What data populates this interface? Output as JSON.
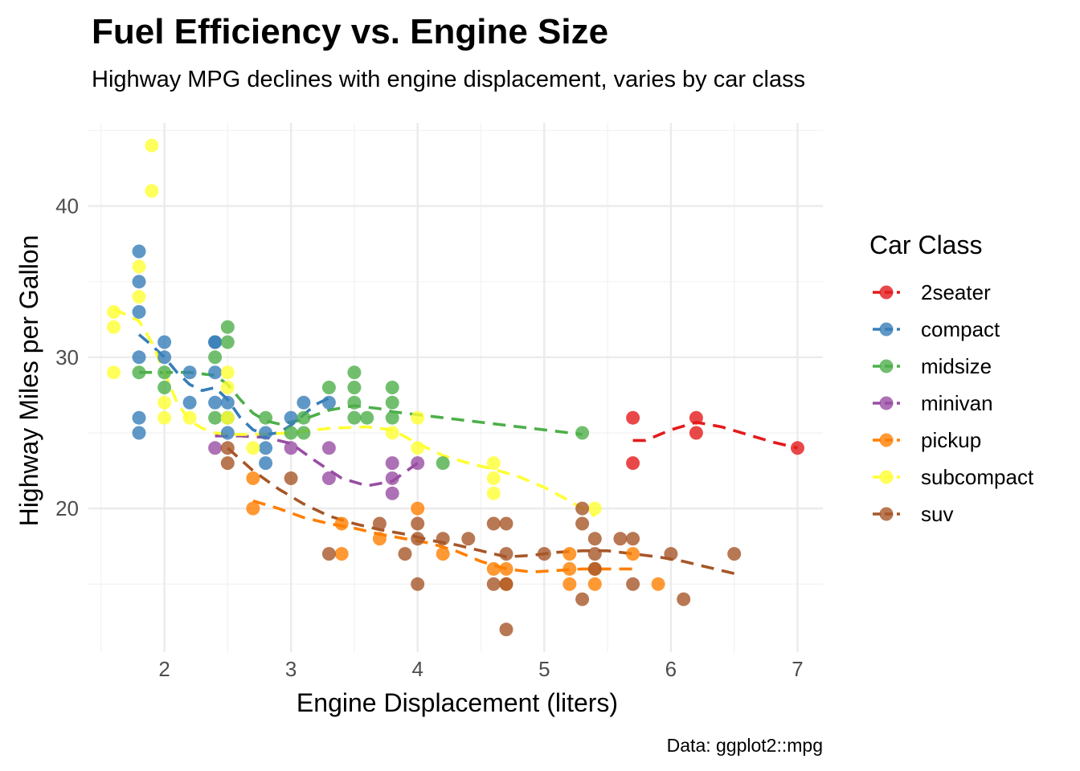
{
  "chart_data": {
    "type": "scatter",
    "title": "Fuel Efficiency vs. Engine Size",
    "subtitle": "Highway MPG declines with engine displacement, varies by car class",
    "xlabel": "Engine Displacement (liters)",
    "ylabel": "Highway Miles per Gallon",
    "caption": "Data: ggplot2::mpg",
    "legend_title": "Car Class",
    "legend_position": "right",
    "grid": true,
    "xlim": [
      1.4,
      7.2
    ],
    "ylim": [
      10.5,
      45.5
    ],
    "x_ticks": [
      2,
      3,
      4,
      5,
      6,
      7
    ],
    "y_ticks": [
      20,
      30,
      40
    ],
    "x_tick_labels": [
      "2",
      "3",
      "4",
      "5",
      "6",
      "7"
    ],
    "y_tick_labels": [
      "20",
      "30",
      "40"
    ],
    "series": [
      {
        "name": "2seater",
        "color": "#E41A1C",
        "points": [
          [
            5.7,
            26
          ],
          [
            5.7,
            23
          ],
          [
            6.2,
            26
          ],
          [
            6.2,
            25
          ],
          [
            7.0,
            24
          ]
        ],
        "trend": [
          [
            5.7,
            24.5
          ],
          [
            5.8,
            24.5
          ],
          [
            6.0,
            25.2
          ],
          [
            6.2,
            25.7
          ],
          [
            6.4,
            25.4
          ],
          [
            6.6,
            24.9
          ],
          [
            6.8,
            24.4
          ],
          [
            7.0,
            24
          ]
        ]
      },
      {
        "name": "compact",
        "color": "#377EB8",
        "points": [
          [
            1.8,
            37
          ],
          [
            1.8,
            35
          ],
          [
            1.8,
            33
          ],
          [
            1.8,
            30
          ],
          [
            1.8,
            26
          ],
          [
            1.8,
            25
          ],
          [
            2.0,
            31
          ],
          [
            2.0,
            30
          ],
          [
            2.2,
            29
          ],
          [
            2.2,
            27
          ],
          [
            2.4,
            31
          ],
          [
            2.4,
            31
          ],
          [
            2.4,
            29
          ],
          [
            2.4,
            27
          ],
          [
            2.5,
            27
          ],
          [
            2.5,
            25
          ],
          [
            2.8,
            25
          ],
          [
            2.8,
            24
          ],
          [
            2.8,
            23
          ],
          [
            3.0,
            26
          ],
          [
            3.1,
            27
          ],
          [
            3.3,
            27
          ]
        ],
        "trend": [
          [
            1.8,
            31.5
          ],
          [
            1.9,
            30.8
          ],
          [
            2.0,
            30.0
          ],
          [
            2.1,
            29.0
          ],
          [
            2.2,
            28.2
          ],
          [
            2.3,
            27.8
          ],
          [
            2.4,
            28.0
          ],
          [
            2.5,
            27.2
          ],
          [
            2.6,
            26.0
          ],
          [
            2.7,
            25.2
          ],
          [
            2.8,
            24.9
          ],
          [
            2.9,
            25.0
          ],
          [
            3.0,
            25.5
          ],
          [
            3.1,
            26.2
          ],
          [
            3.2,
            26.9
          ],
          [
            3.3,
            27.3
          ]
        ]
      },
      {
        "name": "midsize",
        "color": "#4DAF4A",
        "points": [
          [
            1.8,
            29
          ],
          [
            2.0,
            29
          ],
          [
            2.0,
            28
          ],
          [
            2.4,
            30
          ],
          [
            2.4,
            26
          ],
          [
            2.5,
            32
          ],
          [
            2.5,
            31
          ],
          [
            2.5,
            26
          ],
          [
            2.8,
            26
          ],
          [
            3.0,
            25
          ],
          [
            3.1,
            26
          ],
          [
            3.1,
            25
          ],
          [
            3.3,
            28
          ],
          [
            3.5,
            29
          ],
          [
            3.5,
            28
          ],
          [
            3.5,
            27
          ],
          [
            3.5,
            26
          ],
          [
            3.6,
            26
          ],
          [
            3.8,
            28
          ],
          [
            3.8,
            27
          ],
          [
            3.8,
            26
          ],
          [
            4.2,
            23
          ],
          [
            5.3,
            25
          ]
        ],
        "trend": [
          [
            1.8,
            29.0
          ],
          [
            2.0,
            29.0
          ],
          [
            2.2,
            29.0
          ],
          [
            2.4,
            28.8
          ],
          [
            2.5,
            28.2
          ],
          [
            2.6,
            27.2
          ],
          [
            2.7,
            26.3
          ],
          [
            2.8,
            25.8
          ],
          [
            2.9,
            25.6
          ],
          [
            3.0,
            25.7
          ],
          [
            3.1,
            25.9
          ],
          [
            3.3,
            26.5
          ],
          [
            3.5,
            26.8
          ],
          [
            3.7,
            26.6
          ],
          [
            3.8,
            26.4
          ],
          [
            4.0,
            26.2
          ],
          [
            4.3,
            25.9
          ],
          [
            4.6,
            25.6
          ],
          [
            5.0,
            25.2
          ],
          [
            5.3,
            24.9
          ]
        ]
      },
      {
        "name": "minivan",
        "color": "#984EA3",
        "points": [
          [
            2.4,
            24
          ],
          [
            3.0,
            24
          ],
          [
            3.3,
            24
          ],
          [
            3.3,
            22
          ],
          [
            3.8,
            23
          ],
          [
            3.8,
            22
          ],
          [
            3.8,
            21
          ],
          [
            4.0,
            23
          ]
        ],
        "trend": [
          [
            2.4,
            24.8
          ],
          [
            2.6,
            24.8
          ],
          [
            2.8,
            24.7
          ],
          [
            3.0,
            24.3
          ],
          [
            3.2,
            23.1
          ],
          [
            3.4,
            22.0
          ],
          [
            3.6,
            21.5
          ],
          [
            3.8,
            21.8
          ],
          [
            3.9,
            22.4
          ],
          [
            4.0,
            23.0
          ]
        ]
      },
      {
        "name": "pickup",
        "color": "#FF7F00",
        "points": [
          [
            2.7,
            22
          ],
          [
            2.7,
            20
          ],
          [
            3.4,
            19
          ],
          [
            3.4,
            17
          ],
          [
            3.7,
            18
          ],
          [
            4.0,
            20
          ],
          [
            4.2,
            17
          ],
          [
            4.6,
            16
          ],
          [
            4.7,
            16
          ],
          [
            4.7,
            15
          ],
          [
            5.2,
            17
          ],
          [
            5.2,
            16
          ],
          [
            5.2,
            15
          ],
          [
            5.4,
            16
          ],
          [
            5.4,
            15
          ],
          [
            5.7,
            17
          ],
          [
            5.9,
            15
          ]
        ],
        "trend": [
          [
            2.7,
            20.5
          ],
          [
            2.9,
            20.0
          ],
          [
            3.1,
            19.4
          ],
          [
            3.3,
            19.0
          ],
          [
            3.5,
            18.7
          ],
          [
            3.7,
            18.3
          ],
          [
            3.9,
            18.0
          ],
          [
            4.1,
            17.7
          ],
          [
            4.3,
            17.2
          ],
          [
            4.5,
            16.5
          ],
          [
            4.7,
            16.0
          ],
          [
            4.9,
            15.8
          ],
          [
            5.1,
            15.9
          ],
          [
            5.3,
            16.0
          ],
          [
            5.5,
            16.0
          ],
          [
            5.7,
            16.0
          ]
        ]
      },
      {
        "name": "subcompact",
        "color": "#FFFF33",
        "points": [
          [
            1.6,
            33
          ],
          [
            1.6,
            32
          ],
          [
            1.6,
            29
          ],
          [
            1.8,
            36
          ],
          [
            1.8,
            34
          ],
          [
            1.9,
            44
          ],
          [
            1.9,
            41
          ],
          [
            2.0,
            27
          ],
          [
            2.0,
            26
          ],
          [
            2.2,
            26
          ],
          [
            2.5,
            29
          ],
          [
            2.5,
            28
          ],
          [
            2.5,
            26
          ],
          [
            2.7,
            24
          ],
          [
            3.8,
            25
          ],
          [
            4.0,
            26
          ],
          [
            4.0,
            24
          ],
          [
            4.6,
            23
          ],
          [
            4.6,
            22
          ],
          [
            4.6,
            21
          ],
          [
            5.4,
            20
          ]
        ],
        "trend": [
          [
            1.6,
            33.2
          ],
          [
            1.7,
            32.8
          ],
          [
            1.8,
            32.4
          ],
          [
            1.9,
            31.0
          ],
          [
            2.0,
            29.0
          ],
          [
            2.1,
            27.0
          ],
          [
            2.2,
            25.8
          ],
          [
            2.3,
            25.3
          ],
          [
            2.4,
            25.0
          ],
          [
            2.5,
            24.9
          ],
          [
            2.7,
            24.9
          ],
          [
            3.0,
            25.0
          ],
          [
            3.3,
            25.3
          ],
          [
            3.6,
            25.4
          ],
          [
            3.8,
            25.2
          ],
          [
            4.0,
            24.3
          ],
          [
            4.2,
            23.5
          ],
          [
            4.4,
            23.0
          ],
          [
            4.6,
            22.6
          ],
          [
            4.8,
            22.1
          ],
          [
            5.0,
            21.4
          ],
          [
            5.2,
            20.5
          ],
          [
            5.4,
            19.5
          ]
        ]
      },
      {
        "name": "suv",
        "color": "#A65628",
        "points": [
          [
            2.5,
            24
          ],
          [
            2.5,
            23
          ],
          [
            3.0,
            22
          ],
          [
            3.3,
            17
          ],
          [
            3.7,
            19
          ],
          [
            3.9,
            17
          ],
          [
            4.0,
            19
          ],
          [
            4.0,
            18
          ],
          [
            4.0,
            15
          ],
          [
            4.2,
            18
          ],
          [
            4.4,
            18
          ],
          [
            4.6,
            19
          ],
          [
            4.6,
            15
          ],
          [
            4.7,
            19
          ],
          [
            4.7,
            17
          ],
          [
            4.7,
            15
          ],
          [
            4.7,
            12
          ],
          [
            5.0,
            17
          ],
          [
            5.3,
            20
          ],
          [
            5.3,
            19
          ],
          [
            5.3,
            14
          ],
          [
            5.4,
            18
          ],
          [
            5.4,
            17
          ],
          [
            5.4,
            16
          ],
          [
            5.6,
            18
          ],
          [
            5.7,
            18
          ],
          [
            5.7,
            15
          ],
          [
            6.0,
            17
          ],
          [
            6.1,
            14
          ],
          [
            6.5,
            17
          ]
        ],
        "trend": [
          [
            2.5,
            24.0
          ],
          [
            2.7,
            22.5
          ],
          [
            2.9,
            21.3
          ],
          [
            3.1,
            20.3
          ],
          [
            3.3,
            19.5
          ],
          [
            3.5,
            19.0
          ],
          [
            3.7,
            18.6
          ],
          [
            3.9,
            18.3
          ],
          [
            4.1,
            17.9
          ],
          [
            4.3,
            17.6
          ],
          [
            4.5,
            17.2
          ],
          [
            4.7,
            16.8
          ],
          [
            4.9,
            16.9
          ],
          [
            5.1,
            17.1
          ],
          [
            5.3,
            17.2
          ],
          [
            5.5,
            17.2
          ],
          [
            5.7,
            17.0
          ],
          [
            5.9,
            16.8
          ],
          [
            6.1,
            16.5
          ],
          [
            6.3,
            16.1
          ],
          [
            6.5,
            15.7
          ]
        ]
      }
    ]
  }
}
